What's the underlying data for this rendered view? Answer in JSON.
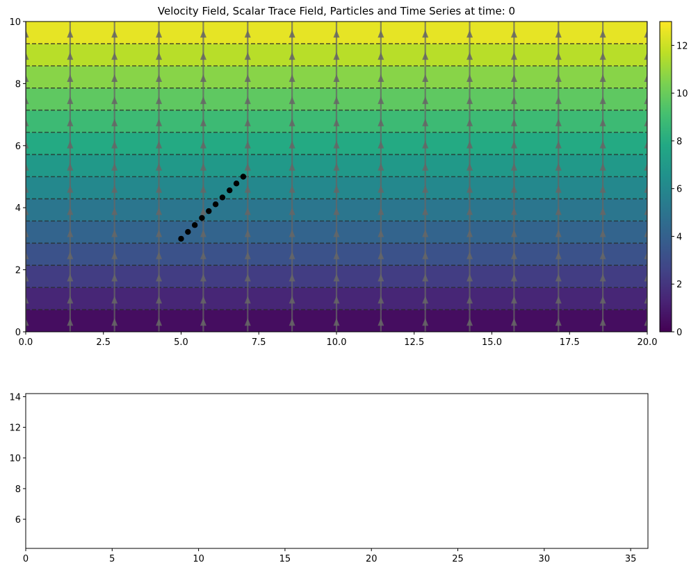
{
  "chart_data": [
    {
      "type": "heatmap",
      "title": "Velocity Field, Scalar Trace Field, Particles and Time Series at time: 0",
      "xlim": [
        0,
        20
      ],
      "ylim": [
        0,
        10
      ],
      "x_ticks": [
        "0.0",
        "2.5",
        "5.0",
        "7.5",
        "10.0",
        "12.5",
        "15.0",
        "17.5",
        "20.0"
      ],
      "x_tick_values": [
        0,
        2.5,
        5,
        7.5,
        10,
        12.5,
        15,
        17.5,
        20
      ],
      "y_ticks": [
        "0",
        "2",
        "4",
        "6",
        "8",
        "10"
      ],
      "y_tick_values": [
        0,
        2,
        4,
        6,
        8,
        10
      ],
      "field": {
        "description": "scalar field increasing linearly with y",
        "colormap": [
          "#440154",
          "#482475",
          "#414487",
          "#355f8d",
          "#2a788e",
          "#21918c",
          "#22a884",
          "#44bf70",
          "#7ad151",
          "#bddf26",
          "#fde725"
        ],
        "vmin": 0,
        "vmax": 13,
        "contour_levels_y": [
          0.714,
          1.429,
          2.143,
          2.857,
          3.571,
          4.286,
          5.0,
          5.714,
          6.429,
          7.143,
          7.857,
          8.571,
          9.286
        ]
      },
      "colorbar": {
        "ticks": [
          "0",
          "2",
          "4",
          "6",
          "8",
          "10",
          "12"
        ],
        "tick_values": [
          0,
          2,
          4,
          6,
          8,
          10,
          12
        ],
        "range": [
          0,
          13
        ]
      },
      "quiver": {
        "x_positions": [
          0,
          1.4286,
          2.8571,
          4.2857,
          5.7143,
          7.1429,
          8.5714,
          10.0,
          11.4286,
          12.8571,
          14.2857,
          15.7143,
          17.1429,
          18.5714,
          20.0
        ],
        "y_positions": [
          0,
          0.714,
          1.429,
          2.143,
          2.857,
          3.571,
          4.286,
          5.0,
          5.714,
          6.429,
          7.143,
          7.857,
          8.571,
          9.286,
          10.0
        ],
        "direction": "up",
        "color": "#666666"
      },
      "particles": {
        "x": [
          5.0,
          5.22,
          5.44,
          5.67,
          5.89,
          6.11,
          6.33,
          6.56,
          6.78,
          7.0
        ],
        "y": [
          3.0,
          3.22,
          3.44,
          3.67,
          3.89,
          4.11,
          4.33,
          4.56,
          4.78,
          5.0
        ],
        "color": "#000000"
      }
    },
    {
      "type": "line",
      "title": "",
      "xlim": [
        0,
        36
      ],
      "ylim": [
        4.1,
        14.2
      ],
      "x_ticks": [
        "0",
        "5",
        "10",
        "15",
        "20",
        "25",
        "30",
        "35"
      ],
      "x_tick_values": [
        0,
        5,
        10,
        15,
        20,
        25,
        30,
        35
      ],
      "y_ticks": [
        "6",
        "8",
        "10",
        "12",
        "14"
      ],
      "y_tick_values": [
        6,
        8,
        10,
        12,
        14
      ],
      "series": []
    }
  ]
}
